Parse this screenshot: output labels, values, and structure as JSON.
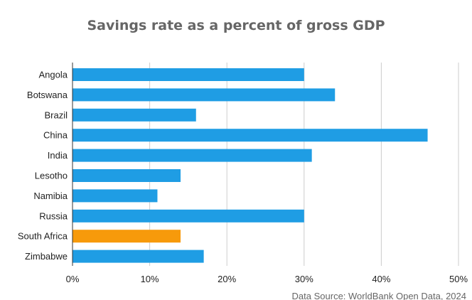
{
  "chart_data": {
    "type": "bar",
    "orientation": "horizontal",
    "title": "Savings rate as a percent of gross GDP",
    "source": "Data Source: WorldBank Open Data, 2024",
    "categories": [
      "Angola",
      "Botswana",
      "Brazil",
      "China",
      "India",
      "Lesotho",
      "Namibia",
      "Russia",
      "South Africa",
      "Zimbabwe"
    ],
    "values": [
      30,
      34,
      16,
      46,
      31,
      14,
      11,
      30,
      14,
      17
    ],
    "xlim": [
      0,
      50
    ],
    "xticks": [
      0,
      10,
      20,
      30,
      40,
      50
    ],
    "xtick_labels": [
      "0%",
      "10%",
      "20%",
      "30%",
      "40%",
      "50%"
    ],
    "grid": true,
    "colors": {
      "default": "#1f9de4",
      "highlight": "#f79a0b",
      "grid": "#cccccc",
      "axis": "#333333"
    },
    "highlight_category": "South Africa"
  }
}
